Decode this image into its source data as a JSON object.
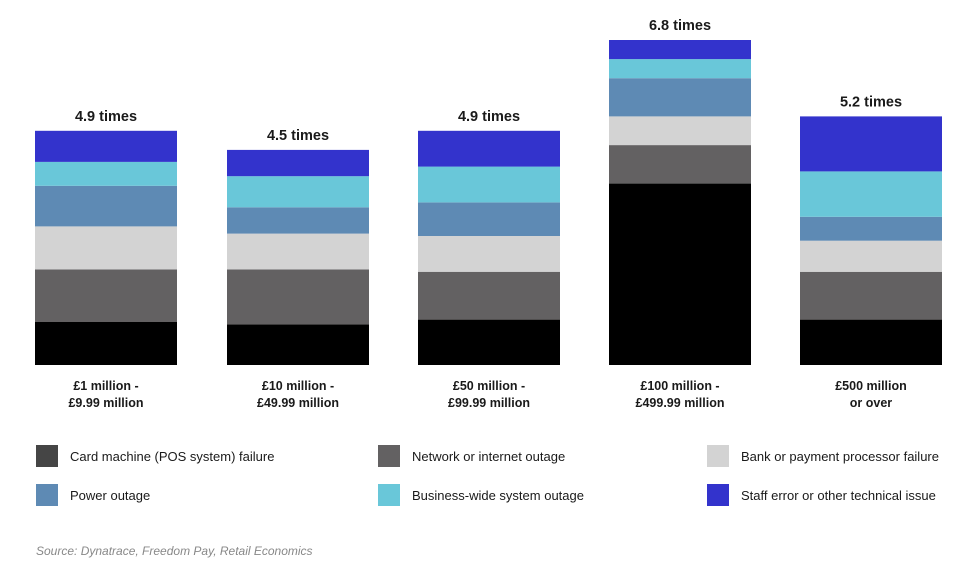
{
  "colors": {
    "card_machine": "#000000",
    "network": "#636162",
    "bank": "#d3d3d3",
    "power": "#5e8ab4",
    "business_wide": "#69c7d9",
    "staff_error": "#3333cc"
  },
  "legend": [
    {
      "name": "Card machine (POS system) failure",
      "color": "#454545"
    },
    {
      "name": "Network or internet outage",
      "color": "#636162"
    },
    {
      "name": "Bank or payment processor failure",
      "color": "#d3d3d3"
    },
    {
      "name": "Power outage",
      "color": "#5e8ab4"
    },
    {
      "name": "Business-wide system outage",
      "color": "#69c7d9"
    },
    {
      "name": "Staff error or other technical issue",
      "color": "#3333cc"
    }
  ],
  "source": "Source: Dynatrace, Freedom Pay, Retail Economics",
  "chart_data": {
    "type": "bar",
    "stacked": true,
    "title": "",
    "xlabel": "",
    "ylabel": "",
    "categories": [
      [
        "£1 million -",
        "£9.99 million"
      ],
      [
        "£10 million -",
        "£49.99 million"
      ],
      [
        "£50 million -",
        "£99.99 million"
      ],
      [
        "£100 million -",
        "£499.99 million"
      ],
      [
        "£500 million",
        "or over"
      ]
    ],
    "totals": [
      4.9,
      4.5,
      4.9,
      6.8,
      5.2
    ],
    "total_labels": [
      "4.9 times",
      "4.5 times",
      "4.9 times",
      "6.8 times",
      "5.2 times"
    ],
    "series": [
      {
        "name": "Card machine (POS system) failure",
        "color": "#000000",
        "values": [
          0.9,
          0.85,
          0.95,
          3.8,
          0.95
        ]
      },
      {
        "name": "Network or internet outage",
        "color": "#636162",
        "values": [
          1.1,
          1.15,
          1.0,
          0.8,
          1.0
        ]
      },
      {
        "name": "Bank or payment processor failure",
        "color": "#d3d3d3",
        "values": [
          0.9,
          0.75,
          0.75,
          0.6,
          0.65
        ]
      },
      {
        "name": "Power outage",
        "color": "#5e8ab4",
        "values": [
          0.85,
          0.55,
          0.7,
          0.8,
          0.5
        ]
      },
      {
        "name": "Business-wide system outage",
        "color": "#69c7d9",
        "values": [
          0.5,
          0.65,
          0.75,
          0.4,
          0.95
        ]
      },
      {
        "name": "Staff error or other technical issue",
        "color": "#3333cc",
        "values": [
          0.65,
          0.55,
          0.75,
          0.4,
          1.15
        ]
      }
    ],
    "ylim": [
      0,
      7
    ],
    "grid": false,
    "legend_position": "bottom"
  }
}
